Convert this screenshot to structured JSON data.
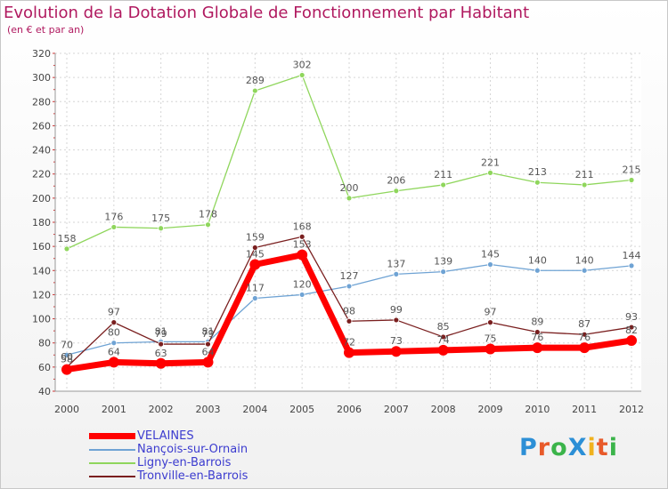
{
  "title": "Evolution de la Dotation Globale de Fonctionnement par Habitant",
  "subtitle": "(en € et par an)",
  "logo": {
    "text": "ProXiti",
    "letter_colors": [
      "#2c8fd6",
      "#e85a2a",
      "#3bb44a",
      "#2c8fd6",
      "#f0b21e",
      "#e85a2a",
      "#3bb44a"
    ]
  },
  "chart_data": {
    "type": "line",
    "x": [
      "2000",
      "2001",
      "2002",
      "2003",
      "2004",
      "2005",
      "2006",
      "2007",
      "2008",
      "2009",
      "2010",
      "2011",
      "2012"
    ],
    "ylim": [
      40,
      320
    ],
    "y_ticks": [
      40,
      60,
      80,
      100,
      120,
      140,
      160,
      180,
      200,
      220,
      240,
      260,
      280,
      300,
      320
    ],
    "grid": true,
    "legend_position": "bottom-left",
    "series": [
      {
        "name": "Ligny-en-Barrois",
        "color": "#8fd65c",
        "values": [
          158,
          176,
          175,
          178,
          289,
          302,
          200,
          206,
          211,
          221,
          213,
          211,
          215
        ],
        "labels": [
          "158",
          "176",
          "175",
          "178",
          "289",
          "302",
          "200",
          "206",
          "211",
          "221",
          "213",
          "211",
          "215"
        ]
      },
      {
        "name": "Nançois-sur-Ornain",
        "color": "#6fa3d4",
        "values": [
          70,
          80,
          81,
          81,
          117,
          120,
          127,
          137,
          139,
          145,
          140,
          140,
          144
        ],
        "labels": [
          "70",
          "80",
          "81",
          "81",
          "117",
          "120",
          "127",
          "137",
          "139",
          "145",
          "140",
          "140",
          "144"
        ]
      },
      {
        "name": "Tronville-en-Barrois",
        "color": "#7a1f1f",
        "values": [
          60,
          97,
          79,
          79,
          159,
          168,
          98,
          99,
          85,
          97,
          89,
          87,
          93
        ],
        "labels": [
          "60",
          "97",
          "79",
          "79",
          "159",
          "168",
          "98",
          "99",
          "85",
          "97",
          "89",
          "87",
          "93"
        ]
      },
      {
        "name": "VELAINES",
        "color": "#ff0000",
        "values": [
          58,
          64,
          63,
          64,
          145,
          153,
          72,
          73,
          74,
          75,
          76,
          76,
          82
        ],
        "labels": [
          "58",
          "64",
          "63",
          "64",
          "145",
          "153",
          "72",
          "73",
          "74",
          "75",
          "76",
          "76",
          "82"
        ]
      }
    ]
  },
  "legend": [
    {
      "name": "VELAINES",
      "color": "#ff0000",
      "bold": true
    },
    {
      "name": "Nançois-sur-Ornain",
      "color": "#6fa3d4",
      "bold": false
    },
    {
      "name": "Ligny-en-Barrois",
      "color": "#8fd65c",
      "bold": false
    },
    {
      "name": "Tronville-en-Barrois",
      "color": "#7a1f1f",
      "bold": false
    }
  ]
}
